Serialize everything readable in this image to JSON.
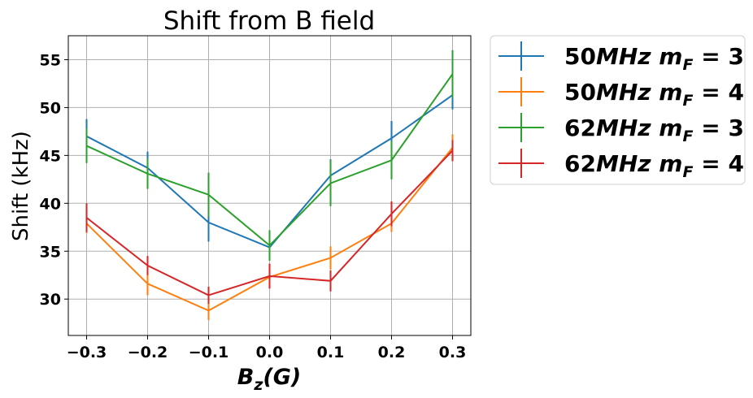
{
  "chart_data": {
    "type": "line",
    "title": "Shift from B field",
    "ylabel": "Shift (kHz)",
    "xlabel": {
      "main": "B",
      "sub": "z",
      "rest": "(G)"
    },
    "xlim": [
      -0.33,
      0.33
    ],
    "ylim": [
      26.2,
      57.5
    ],
    "xticks": [
      -0.3,
      -0.2,
      -0.1,
      0.0,
      0.1,
      0.2,
      0.3
    ],
    "xtick_labels": [
      "−0.3",
      "−0.2",
      "−0.1",
      "0.0",
      "0.1",
      "0.2",
      "0.3"
    ],
    "yticks": [
      30,
      35,
      40,
      45,
      50,
      55
    ],
    "ytick_labels": [
      "30",
      "35",
      "40",
      "45",
      "50",
      "55"
    ],
    "grid": true,
    "legend_position": "outside-right-top",
    "x": [
      -0.3,
      -0.2,
      -0.1,
      0.0,
      0.1,
      0.2,
      0.3
    ],
    "series": [
      {
        "name": "50MHz m_F = 3",
        "prefix": "50",
        "unit": "MHz",
        "mF": "3",
        "color": "#1f77b4",
        "values": [
          47.0,
          43.7,
          38.0,
          35.4,
          42.9,
          46.8,
          51.3
        ],
        "errors": [
          1.8,
          1.7,
          2.0,
          1.3,
          1.7,
          1.8,
          1.5
        ]
      },
      {
        "name": "50MHz m_F = 4",
        "prefix": "50",
        "unit": "MHz",
        "mF": "4",
        "color": "#ff7f0e",
        "values": [
          37.9,
          31.6,
          28.8,
          32.3,
          34.3,
          37.9,
          45.8
        ],
        "errors": [
          1.0,
          1.2,
          1.0,
          1.0,
          1.2,
          0.9,
          1.4
        ]
      },
      {
        "name": "62MHz m_F = 3",
        "prefix": "62",
        "unit": "MHz",
        "mF": "3",
        "color": "#2ca02c",
        "values": [
          46.0,
          43.1,
          40.9,
          35.6,
          42.1,
          44.5,
          53.5
        ],
        "errors": [
          1.8,
          1.6,
          2.3,
          1.6,
          2.4,
          2.0,
          2.5
        ]
      },
      {
        "name": "62MHz m_F = 4",
        "prefix": "62",
        "unit": "MHz",
        "mF": "4",
        "color": "#d62728",
        "values": [
          38.5,
          33.5,
          30.4,
          32.4,
          31.9,
          38.9,
          45.5
        ],
        "errors": [
          1.5,
          1.0,
          0.9,
          1.3,
          1.1,
          1.3,
          1.1
        ]
      }
    ]
  }
}
